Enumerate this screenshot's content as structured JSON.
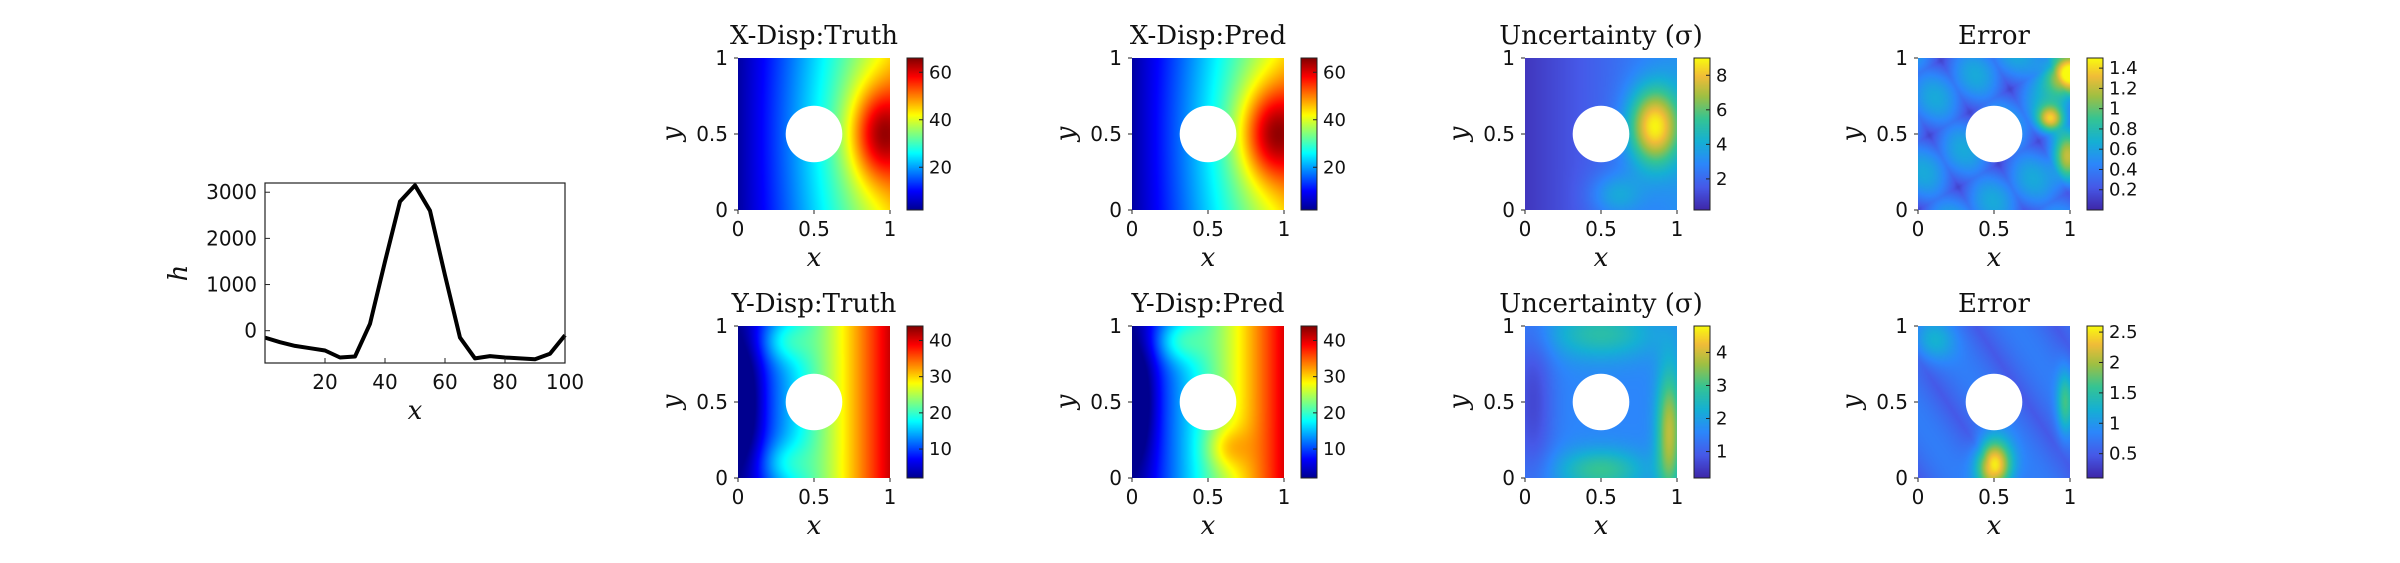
{
  "chart_data": [
    {
      "id": "profile",
      "type": "line",
      "xlabel": "x",
      "ylabel": "h",
      "xlim": [
        0,
        100
      ],
      "ylim": [
        -700,
        3200
      ],
      "xticks": [
        20,
        40,
        60,
        80,
        100
      ],
      "yticks": [
        0,
        1000,
        2000,
        3000
      ],
      "grid": false,
      "series": [
        {
          "color": "#000000",
          "x": [
            0,
            5,
            10,
            15,
            20,
            25,
            30,
            35,
            40,
            45,
            50,
            55,
            60,
            65,
            70,
            75,
            80,
            85,
            90,
            95,
            100
          ],
          "y": [
            -150,
            -250,
            -330,
            -380,
            -430,
            -580,
            -560,
            150,
            1500,
            2800,
            3150,
            2600,
            1200,
            -150,
            -600,
            -550,
            -580,
            -600,
            -620,
            -500,
            -100
          ]
        }
      ]
    },
    {
      "id": "xdisp-truth",
      "type": "heatmap",
      "title": "X-Disp:Truth",
      "xlabel": "x",
      "ylabel": "y",
      "xlim": [
        0,
        1
      ],
      "ylim": [
        0,
        1
      ],
      "xticks": [
        0,
        0.5,
        1
      ],
      "yticks": [
        0,
        0.5,
        1
      ],
      "colormap": "jet",
      "clim": [
        2,
        66
      ],
      "colorbar_ticks": [
        20,
        40,
        60
      ],
      "hole": {
        "center": [
          0.5,
          0.5
        ],
        "radius": 0.25
      },
      "value_field": "x_displacement_truth"
    },
    {
      "id": "xdisp-pred",
      "type": "heatmap",
      "title": "X-Disp:Pred",
      "xlabel": "x",
      "ylabel": "y",
      "xlim": [
        0,
        1
      ],
      "ylim": [
        0,
        1
      ],
      "xticks": [
        0,
        0.5,
        1
      ],
      "yticks": [
        0,
        0.5,
        1
      ],
      "colormap": "jet",
      "clim": [
        2,
        66
      ],
      "colorbar_ticks": [
        20,
        40,
        60
      ],
      "hole": {
        "center": [
          0.5,
          0.5
        ],
        "radius": 0.25
      },
      "value_field": "x_displacement_pred"
    },
    {
      "id": "xdisp-uncertainty",
      "type": "heatmap",
      "title": "Uncertainty (σ)",
      "xlabel": "x",
      "ylabel": "y",
      "xlim": [
        0,
        1
      ],
      "ylim": [
        0,
        1
      ],
      "xticks": [
        0,
        0.5,
        1
      ],
      "yticks": [
        0,
        0.5,
        1
      ],
      "colormap": "parula",
      "clim": [
        0.2,
        9
      ],
      "colorbar_ticks": [
        2,
        4,
        6,
        8
      ],
      "hole": {
        "center": [
          0.5,
          0.5
        ],
        "radius": 0.25
      },
      "value_field": "x_displacement_sigma"
    },
    {
      "id": "xdisp-error",
      "type": "heatmap",
      "title": "Error",
      "xlabel": "x",
      "ylabel": "y",
      "xlim": [
        0,
        1
      ],
      "ylim": [
        0,
        1
      ],
      "xticks": [
        0,
        0.5,
        1
      ],
      "yticks": [
        0,
        0.5,
        1
      ],
      "colormap": "parula",
      "clim": [
        0,
        1.5
      ],
      "colorbar_ticks": [
        0.2,
        0.4,
        0.6,
        0.8,
        1,
        1.2,
        1.4
      ],
      "hole": {
        "center": [
          0.5,
          0.5
        ],
        "radius": 0.25
      },
      "value_field": "x_displacement_error"
    },
    {
      "id": "ydisp-truth",
      "type": "heatmap",
      "title": "Y-Disp:Truth",
      "xlabel": "x",
      "ylabel": "y",
      "xlim": [
        0,
        1
      ],
      "ylim": [
        0,
        1
      ],
      "xticks": [
        0,
        0.5,
        1
      ],
      "yticks": [
        0,
        0.5,
        1
      ],
      "colormap": "jet",
      "clim": [
        2,
        44
      ],
      "colorbar_ticks": [
        10,
        20,
        30,
        40
      ],
      "hole": {
        "center": [
          0.5,
          0.5
        ],
        "radius": 0.25
      },
      "value_field": "y_displacement_truth"
    },
    {
      "id": "ydisp-pred",
      "type": "heatmap",
      "title": "Y-Disp:Pred",
      "xlabel": "x",
      "ylabel": "y",
      "xlim": [
        0,
        1
      ],
      "ylim": [
        0,
        1
      ],
      "xticks": [
        0,
        0.5,
        1
      ],
      "yticks": [
        0,
        0.5,
        1
      ],
      "colormap": "jet",
      "clim": [
        2,
        44
      ],
      "colorbar_ticks": [
        10,
        20,
        30,
        40
      ],
      "hole": {
        "center": [
          0.5,
          0.5
        ],
        "radius": 0.25
      },
      "value_field": "y_displacement_pred"
    },
    {
      "id": "ydisp-uncertainty",
      "type": "heatmap",
      "title": "Uncertainty (σ)",
      "xlabel": "x",
      "ylabel": "y",
      "xlim": [
        0,
        1
      ],
      "ylim": [
        0,
        1
      ],
      "xticks": [
        0,
        0.5,
        1
      ],
      "yticks": [
        0,
        0.5,
        1
      ],
      "colormap": "parula",
      "clim": [
        0.2,
        4.8
      ],
      "colorbar_ticks": [
        1,
        2,
        3,
        4
      ],
      "hole": {
        "center": [
          0.5,
          0.5
        ],
        "radius": 0.25
      },
      "value_field": "y_displacement_sigma"
    },
    {
      "id": "ydisp-error",
      "type": "heatmap",
      "title": "Error",
      "xlabel": "x",
      "ylabel": "y",
      "xlim": [
        0,
        1
      ],
      "ylim": [
        0,
        1
      ],
      "xticks": [
        0,
        0.5,
        1
      ],
      "yticks": [
        0,
        0.5,
        1
      ],
      "colormap": "parula",
      "clim": [
        0.1,
        2.6
      ],
      "colorbar_ticks": [
        0.5,
        1,
        1.5,
        2,
        2.5
      ],
      "hole": {
        "center": [
          0.5,
          0.5
        ],
        "radius": 0.25
      },
      "value_field": "y_displacement_error"
    }
  ]
}
